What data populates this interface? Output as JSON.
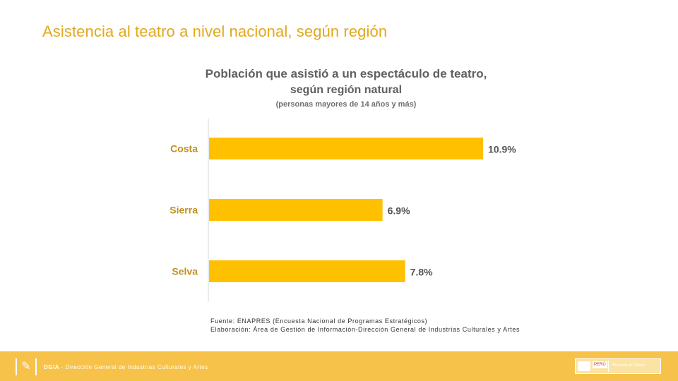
{
  "slide": {
    "title": "Asistencia al teatro a nivel nacional, según región"
  },
  "chart_data": {
    "type": "bar",
    "orientation": "horizontal",
    "title": "Población que asistió a un espectáculo de teatro,",
    "title_line2": "según región natural",
    "subtitle": "(personas mayores de 14 años y más)",
    "categories": [
      "Costa",
      "Sierra",
      "Selva"
    ],
    "values": [
      10.9,
      6.9,
      7.8
    ],
    "value_labels": [
      "10.9%",
      "6.9%",
      "7.8%"
    ],
    "unit": "%",
    "xlim": [
      0,
      13
    ],
    "grid": false,
    "legend": "none",
    "colors": {
      "bar": "#ffc000",
      "label": "#c09020",
      "value": "#555555",
      "axis": "#d9d9d9"
    }
  },
  "source": {
    "line1": "Fuente: ENAPRES (Encuesta Nacional de Programas Estratégicos)",
    "line2": "Elaboración: Área de Gestión de Información-Dirección General de Industrias Culturales y Artes"
  },
  "footer": {
    "logo_icon": "bracket-logo-icon",
    "acronym": "DGIA",
    "text": " - Dirección General de Industrias Culturales y Artes",
    "badge_peru": "PERÚ",
    "badge_name": "Ministerio de Cultura",
    "color": "#f7c24a"
  }
}
